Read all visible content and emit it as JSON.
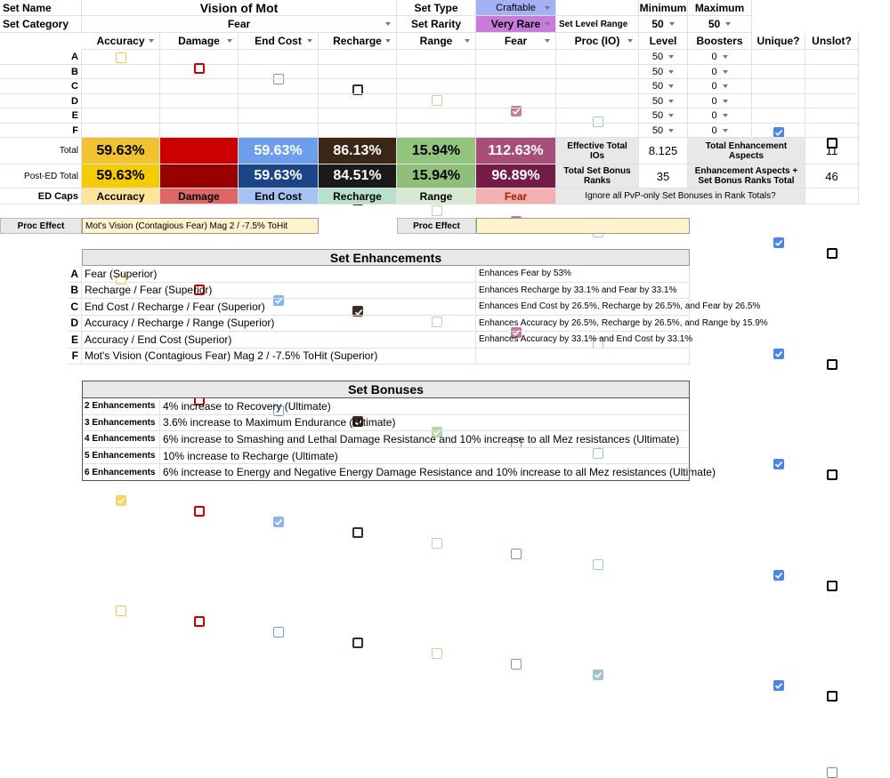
{
  "header": {
    "set_name_label": "Set Name",
    "set_name": "Vision of Mot",
    "set_type_label": "Set Type",
    "set_type": "Craftable",
    "minimum_label": "Minimum",
    "maximum_label": "Maximum",
    "set_category_label": "Set Category",
    "set_category": "Fear",
    "set_rarity_label": "Set Rarity",
    "set_rarity": "Very Rare",
    "level_range_label": "Set Level Range",
    "level_min": 50,
    "level_max": 50
  },
  "grid": {
    "columns": [
      "Accuracy",
      "Damage",
      "End Cost",
      "Recharge",
      "Range",
      "Fear",
      "Proc (IO)",
      "Level",
      "Boosters",
      "Unique?",
      "Unslot?"
    ],
    "rows": [
      {
        "slot": "A",
        "checks": [
          false,
          false,
          false,
          false,
          false,
          true,
          false
        ],
        "level": 50,
        "boosters": 0,
        "unique": true,
        "unslot": false
      },
      {
        "slot": "B",
        "checks": [
          false,
          false,
          false,
          true,
          false,
          true,
          false
        ],
        "level": 50,
        "boosters": 0,
        "unique": true,
        "unslot": false
      },
      {
        "slot": "C",
        "checks": [
          false,
          false,
          true,
          true,
          false,
          true,
          false
        ],
        "level": 50,
        "boosters": 0,
        "unique": true,
        "unslot": false
      },
      {
        "slot": "D",
        "checks": [
          true,
          false,
          false,
          true,
          true,
          false,
          false
        ],
        "level": 50,
        "boosters": 0,
        "unique": true,
        "unslot": false
      },
      {
        "slot": "E",
        "checks": [
          true,
          false,
          true,
          false,
          false,
          false,
          false
        ],
        "level": 50,
        "boosters": 0,
        "unique": true,
        "unslot": false
      },
      {
        "slot": "F",
        "checks": [
          false,
          false,
          false,
          false,
          false,
          false,
          true
        ],
        "level": 50,
        "boosters": 0,
        "unique": true,
        "unslot": false
      }
    ]
  },
  "totals": {
    "total_label": "Total",
    "total": [
      "59.63%",
      null,
      "59.63%",
      "86.13%",
      "15.94%",
      "112.63%"
    ],
    "post_ed_label": "Post-ED Total",
    "post_ed": [
      "59.63%",
      null,
      "59.63%",
      "84.51%",
      "15.94%",
      "96.89%"
    ],
    "ed_caps_label": "ED Caps",
    "effective_ios_label": "Effective Total IOs",
    "effective_ios": 8.125,
    "aspects_label": "Total Enhancement Aspects",
    "aspects": 11,
    "bonus_ranks_label": "Total Set Bonus Ranks",
    "bonus_ranks": 35,
    "aspects_ranks_label": "Enhancement Aspects + Set Bonus Ranks Total",
    "aspects_ranks": 46,
    "pvp_label": "Ignore all PvP-only Set Bonuses in Rank Totals?",
    "pvp_ignore": false
  },
  "proc": [
    {
      "label": "Proc Effect",
      "effect": "Mot's Vision (Contagious Fear) Mag 2 / -7.5% ToHit"
    },
    {
      "label": "Proc Effect"
    }
  ],
  "set_enhancements": {
    "title": "Set Enhancements",
    "rows": [
      {
        "slot": "A",
        "name": "Fear (Superior)",
        "effect": "Enhances Fear by 53%"
      },
      {
        "slot": "B",
        "name": "Recharge / Fear (Superior)",
        "effect": "Enhances Recharge by 33.1% and Fear by 33.1%"
      },
      {
        "slot": "C",
        "name": "End Cost / Recharge / Fear (Superior)",
        "effect": "Enhances End Cost by 26.5%, Recharge by 26.5%, and Fear by 26.5%"
      },
      {
        "slot": "D",
        "name": "Accuracy / Recharge / Range (Superior)",
        "effect": "Enhances Accuracy by 26.5%, Recharge by 26.5%, and Range by 15.9%"
      },
      {
        "slot": "E",
        "name": "Accuracy / End Cost (Superior)",
        "effect": "Enhances Accuracy by 33.1% and End Cost by 33.1%"
      },
      {
        "slot": "F",
        "name": "Mot's Vision (Contagious Fear) Mag 2 / -7.5% ToHit (Superior)"
      }
    ]
  },
  "set_bonuses": {
    "title": "Set Bonuses",
    "rows": [
      {
        "count": "2 Enhancements",
        "bonus": "4% increase to Recovery (Ultimate)"
      },
      {
        "count": "3 Enhancements",
        "bonus": "3.6% increase to Maximum Endurance (Ultimate)"
      },
      {
        "count": "4 Enhancements",
        "bonus": "6% increase to Smashing and Lethal Damage Resistance and 10% increase to all Mez resistances (Ultimate)"
      },
      {
        "count": "5 Enhancements",
        "bonus": "10% increase to Recharge (Ultimate)"
      },
      {
        "count": "6 Enhancements",
        "bonus": "6% increase to Energy and Negative Energy Damage Resistance and 10% increase to all Mez resistances (Ultimate)"
      }
    ]
  }
}
